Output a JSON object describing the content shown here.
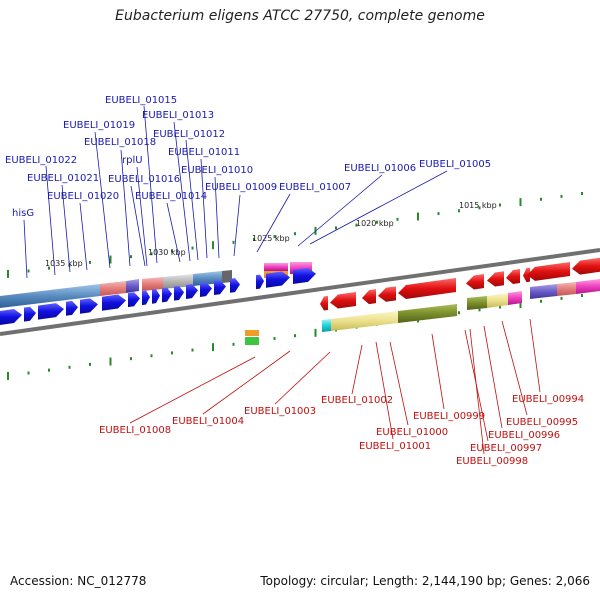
{
  "title": "Eubacterium eligens ATCC 27750, complete genome",
  "footer": {
    "accession": "Accession: NC_012778",
    "summary": "Topology: circular; Length: 2,144,190 bp; Genes: 2,066"
  },
  "scale_labels": [
    "1035 kbp",
    "1030 kbp",
    "1025 kbp",
    "1020 kbp",
    "1015 kbp"
  ],
  "forward_genes": [
    "hisG",
    "EUBELI_01022",
    "EUBELI_01021",
    "EUBELI_01020",
    "EUBELI_01019",
    "EUBELI_01018",
    "rplU",
    "EUBELI_01016",
    "EUBELI_01015",
    "EUBELI_01014",
    "EUBELI_01013",
    "EUBELI_01012",
    "EUBELI_01011",
    "EUBELI_01010",
    "EUBELI_01009",
    "EUBELI_01007",
    "EUBELI_01006",
    "EUBELI_01005"
  ],
  "reverse_genes": [
    "EUBELI_01008",
    "EUBELI_01004",
    "EUBELI_01003",
    "EUBELI_01002",
    "EUBELI_01000",
    "EUBELI_01001",
    "EUBELI_00999",
    "EUBELI_00997",
    "EUBELI_00998",
    "EUBELI_00996",
    "EUBELI_00995",
    "EUBELI_00994"
  ],
  "colors": {
    "forward": "#1010e0",
    "reverse": "#e01010",
    "forward_label": "#1a1ab0",
    "reverse_label": "#c01010",
    "tick": "#2a8a2a",
    "backbone": "#777777"
  }
}
